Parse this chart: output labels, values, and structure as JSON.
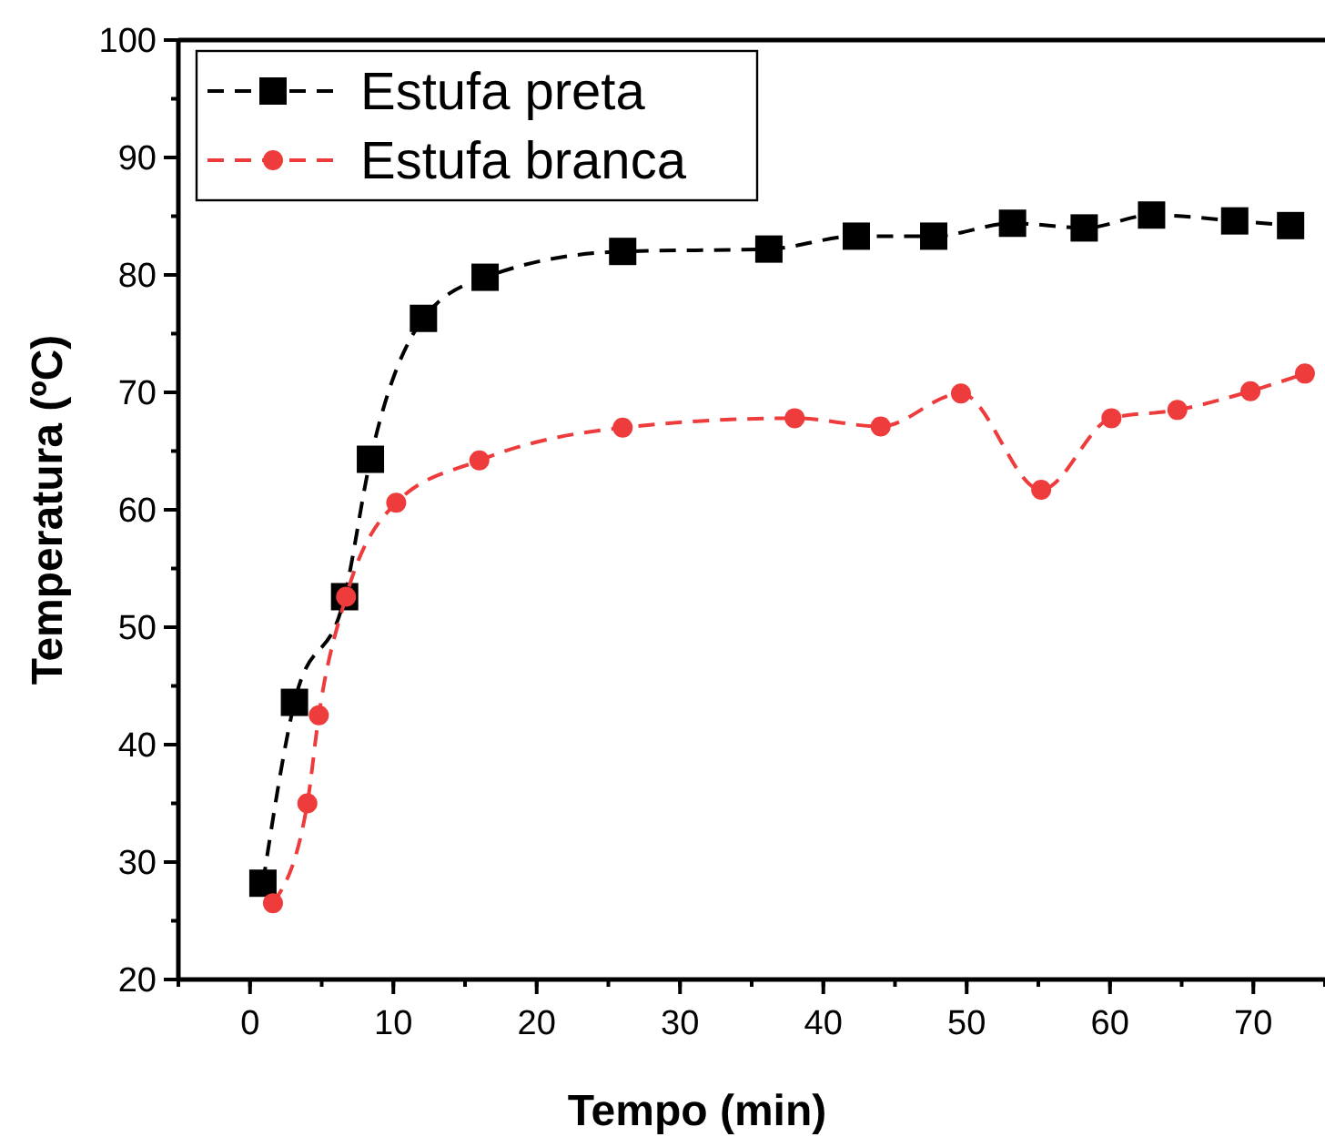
{
  "chart_data": {
    "type": "line",
    "xlabel": "Tempo (min)",
    "ylabel": "Temperatura (ºC)",
    "xlim": [
      -5,
      75
    ],
    "xticks": [
      0,
      10,
      20,
      30,
      40,
      50,
      60,
      70
    ],
    "ylim": [
      20,
      100
    ],
    "yticks": [
      20,
      30,
      40,
      50,
      60,
      70,
      80,
      90,
      100
    ],
    "grid": false,
    "legend": "top left",
    "line_style": "dashed",
    "series": [
      {
        "name": "Estufa preta",
        "color": "#000000",
        "marker": "square",
        "x": [
          0.9,
          3.1,
          6.6,
          8.4,
          12.1,
          16.4,
          26.0,
          36.2,
          42.3,
          47.7,
          53.2,
          58.2,
          62.9,
          68.7,
          72.6
        ],
        "values": [
          28.2,
          43.6,
          52.6,
          64.3,
          76.3,
          79.8,
          82.0,
          82.2,
          83.3,
          83.3,
          84.4,
          84.0,
          85.1,
          84.6,
          84.2
        ]
      },
      {
        "name": "Estufa branca",
        "color": "#ee3b3b",
        "marker": "circle",
        "x": [
          1.6,
          4.0,
          4.8,
          6.7,
          10.2,
          16.0,
          26.0,
          38.0,
          44.0,
          49.6,
          55.2,
          60.1,
          64.7,
          69.8,
          73.6
        ],
        "values": [
          26.5,
          35.0,
          42.5,
          52.6,
          60.6,
          64.2,
          67.0,
          67.8,
          67.1,
          69.9,
          61.7,
          67.8,
          68.5,
          70.1,
          71.6
        ]
      }
    ]
  }
}
